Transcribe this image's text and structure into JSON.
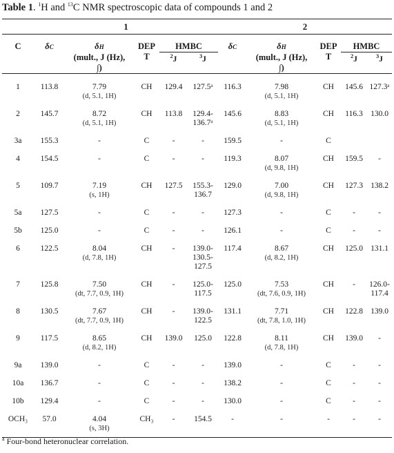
{
  "caption": {
    "label": "Table 1",
    "sup1": "1",
    "mid": "H and ",
    "sup2": "13",
    "rest": "C NMR spectroscopic data of compounds 1 and 2"
  },
  "headers": {
    "compound1": "1",
    "compound2": "2",
    "c": "C",
    "dc_sym": "δ",
    "dc_sub": "C",
    "dh_sym": "δ",
    "dh_sub": "H",
    "mult_line": "(mult., J (Hz),",
    "mult_end": "∫)",
    "dept_a": "DEP",
    "dept_b": "T",
    "hmbc": "HMBC",
    "j2_sup": "2",
    "j3_sup": "3",
    "j_letter": "J"
  },
  "rows": [
    {
      "c": "1",
      "dc1": "113.8",
      "dh1": "7.79",
      "m1": "(d, 5.1, 1H)",
      "dept1": "CH",
      "j2a": "129.4",
      "j3a": "127.5ᵃ",
      "dc2": "116.3",
      "dh2": "7.98",
      "m2": "(d, 5.1, 1H)",
      "dept2": "CH",
      "j2b": "145.6",
      "j3b": "127.3ᵃ"
    },
    {
      "c": "2",
      "dc1": "145.7",
      "dh1": "8.72",
      "m1": "(d, 5.1, 1H)",
      "dept1": "CH",
      "j2a": "113.8",
      "j3a": "129.4-",
      "j3a2": "136.7ᵃ",
      "dc2": "145.6",
      "dh2": "8.83",
      "m2": "(d, 5.1, 1H)",
      "dept2": "CH",
      "j2b": "116.3",
      "j3b": "130.0"
    },
    {
      "c": "3a",
      "dc1": "155.3",
      "dh1": "-",
      "m1": "",
      "dept1": "C",
      "j2a": "-",
      "j3a": "-",
      "dc2": "159.5",
      "dh2": "-",
      "m2": "",
      "dept2": "C",
      "j2b": "",
      "j3b": ""
    },
    {
      "c": "4",
      "dc1": "154.5",
      "dh1": "-",
      "m1": "",
      "dept1": "C",
      "j2a": "-",
      "j3a": "-",
      "dc2": "119.3",
      "dh2": "8.07",
      "m2": "(d, 9.8, 1H)",
      "dept2": "CH",
      "j2b": "159.5",
      "j3b": "-"
    },
    {
      "c": "5",
      "dc1": "109.7",
      "dh1": "7.19",
      "m1": "(s, 1H)",
      "dept1": "CH",
      "j2a": "127.5",
      "j3a": "155.3-",
      "j3a2": "136.7",
      "dc2": "129.0",
      "dh2": "7.00",
      "m2": "(d, 9.8, 1H)",
      "dept2": "CH",
      "j2b": "127.3",
      "j3b": "138.2"
    },
    {
      "c": "5a",
      "dc1": "127.5",
      "dh1": "-",
      "m1": "",
      "dept1": "C",
      "j2a": "-",
      "j3a": "-",
      "dc2": "127.3",
      "dh2": "-",
      "m2": "",
      "dept2": "C",
      "j2b": "-",
      "j3b": "-"
    },
    {
      "c": "5b",
      "dc1": "125.0",
      "dh1": "-",
      "m1": "",
      "dept1": "C",
      "j2a": "-",
      "j3a": "-",
      "dc2": "126.1",
      "dh2": "-",
      "m2": "",
      "dept2": "C",
      "j2b": "-",
      "j3b": "-"
    },
    {
      "c": "6",
      "dc1": "122.5",
      "dh1": "8.04",
      "m1": "(d, 7.8, 1H)",
      "dept1": "CH",
      "j2a": "-",
      "j3a": "139.0-",
      "j3a2": "130.5-",
      "j3a3": "127.5",
      "dc2": "117.4",
      "dh2": "8.67",
      "m2": "(d, 8.2, 1H)",
      "dept2": "CH",
      "j2b": "125.0",
      "j3b": "131.1"
    },
    {
      "c": "7",
      "dc1": "125.8",
      "dh1": "7.50",
      "m1": "(dt, 7.7, 0.9, 1H)",
      "dept1": "CH",
      "j2a": "-",
      "j3a": "125.0-",
      "j3a2": "117.5",
      "dc2": "125.0",
      "dh2": "7.53",
      "m2": "(dt, 7.6, 0.9, 1H)",
      "dept2": "CH",
      "j2b": "-",
      "j3b": "126.0-",
      "j3b2": "117.4"
    },
    {
      "c": "8",
      "dc1": "130.5",
      "dh1": "7.67",
      "m1": "(dt, 7.7, 0.9, 1H)",
      "dept1": "CH",
      "j2a": "-",
      "j3a": "139.0-",
      "j3a2": "122.5",
      "dc2": "131.1",
      "dh2": "7.71",
      "m2": "(dt, 7.8, 1.0, 1H)",
      "dept2": "CH",
      "j2b": "122.8",
      "j3b": "139.0"
    },
    {
      "c": "9",
      "dc1": "117.5",
      "dh1": "8.65",
      "m1": "(d, 8.2, 1H)",
      "dept1": "CH",
      "j2a": "139.0",
      "j3a": "125.0",
      "dc2": "122.8",
      "dh2": "8.11",
      "m2": "(d, 7.8, 1H)",
      "dept2": "CH",
      "j2b": "139.0",
      "j3b": "-"
    },
    {
      "c": "9a",
      "dc1": "139.0",
      "dh1": "-",
      "m1": "",
      "dept1": "C",
      "j2a": "-",
      "j3a": "-",
      "dc2": "139.0",
      "dh2": "-",
      "m2": "",
      "dept2": "C",
      "j2b": "-",
      "j3b": "-"
    },
    {
      "c": "10a",
      "dc1": "136.7",
      "dh1": "-",
      "m1": "",
      "dept1": "C",
      "j2a": "-",
      "j3a": "-",
      "dc2": "138.2",
      "dh2": "-",
      "m2": "",
      "dept2": "C",
      "j2b": "-",
      "j3b": "-"
    },
    {
      "c": "10b",
      "dc1": "129.4",
      "dh1": "-",
      "m1": "",
      "dept1": "C",
      "j2a": "-",
      "j3a": "-",
      "dc2": "130.0",
      "dh2": "-",
      "m2": "",
      "dept2": "C",
      "j2b": "-",
      "j3b": "-"
    },
    {
      "c": "OCH₃",
      "dc1": "57.0",
      "dh1": "4.04",
      "m1": "(s, 3H)",
      "dept1": "CH₃",
      "j2a": "-",
      "j3a": "154.5",
      "dc2": "-",
      "dh2": "-",
      "m2": "",
      "dept2": "-",
      "j2b": "-",
      "j3b": "-"
    }
  ],
  "footnote": {
    "sup": "a",
    "text": " Four-bond heteronuclear correlation."
  }
}
